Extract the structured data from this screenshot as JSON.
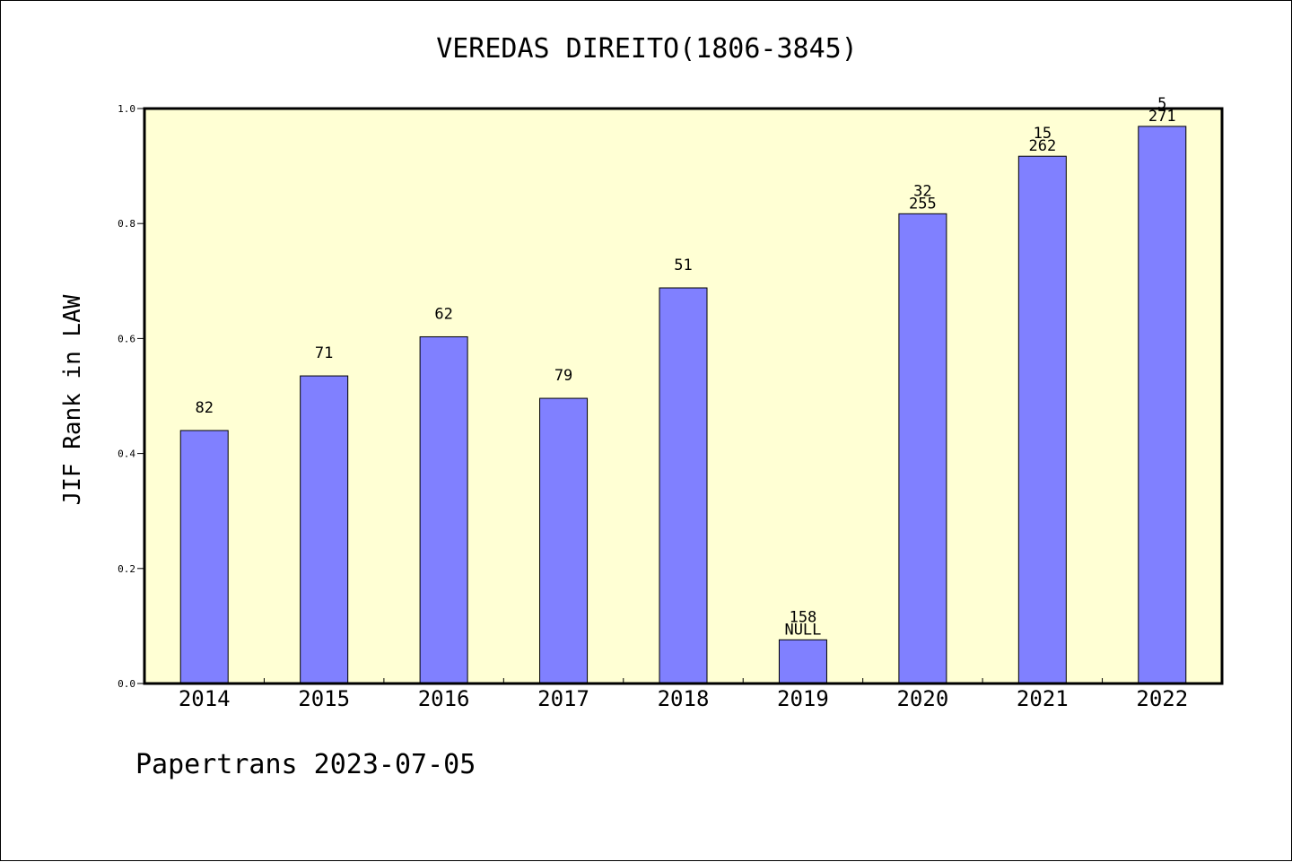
{
  "chart_data": {
    "type": "bar",
    "title": "VEREDAS DIREITO(1806-3845)",
    "xlabel": "",
    "ylabel": "JIF Rank in LAW",
    "ylim": [
      0,
      1.0
    ],
    "yticks": [
      "0.0",
      "0.2",
      "0.4",
      "0.6",
      "0.8",
      "1.0"
    ],
    "categories": [
      "2014",
      "2015",
      "2016",
      "2017",
      "2018",
      "2019",
      "2020",
      "2021",
      "2022"
    ],
    "values": [
      0.44,
      0.535,
      0.603,
      0.496,
      0.688,
      0.076,
      0.817,
      0.917,
      0.969
    ],
    "label_top": [
      "",
      "",
      "",
      "",
      "",
      "158",
      "32",
      "15",
      "5"
    ],
    "label_bottom": [
      "82",
      "71",
      "62",
      "79",
      "51",
      "NULL",
      "255",
      "262",
      "271"
    ],
    "colors": {
      "plot_background": "#ffffd4",
      "bar_fill": "#8080ff",
      "bar_stroke": "#000000"
    }
  },
  "footer": {
    "credit": "Papertrans 2023-07-05"
  }
}
